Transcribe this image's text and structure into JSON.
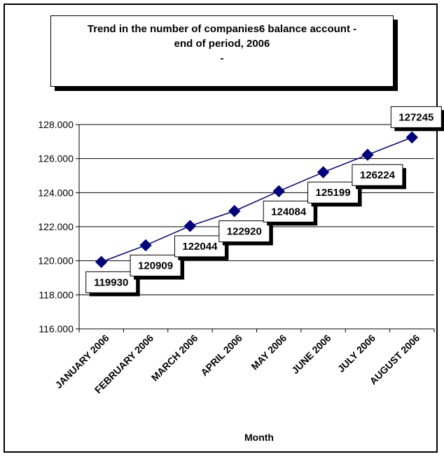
{
  "chart_data": {
    "type": "line",
    "title": "Trend in the number of companies6 balance account - end of period, 2006",
    "title_lines": [
      "Trend in the number of companies6 balance account -",
      "end of period, 2006",
      "-"
    ],
    "xlabel": "Month",
    "ylabel": "",
    "categories": [
      "JANUARY 2006",
      "FEBRUARY 2006",
      "MARCH 2006",
      "APRIL 2006",
      "MAY 2006",
      "JUNE 2006",
      "JULY 2006",
      "AUGUST 2006"
    ],
    "values": [
      119930,
      120909,
      122044,
      122920,
      124084,
      125199,
      126224,
      127245
    ],
    "data_labels": [
      "119930",
      "120909",
      "122044",
      "122920",
      "124084",
      "125199",
      "126224",
      "127245"
    ],
    "ylim": [
      116000,
      128000
    ],
    "yticks": [
      116000,
      118000,
      120000,
      122000,
      124000,
      126000,
      128000
    ],
    "ytick_labels": [
      "116.000",
      "118.000",
      "120.000",
      "122.000",
      "124.000",
      "126.000",
      "128.000"
    ],
    "grid": true,
    "legend": "none",
    "colors": {
      "line": "#00007f",
      "marker": "#00007f",
      "grid": "#000000",
      "label_box_shadow": "#000000"
    }
  }
}
